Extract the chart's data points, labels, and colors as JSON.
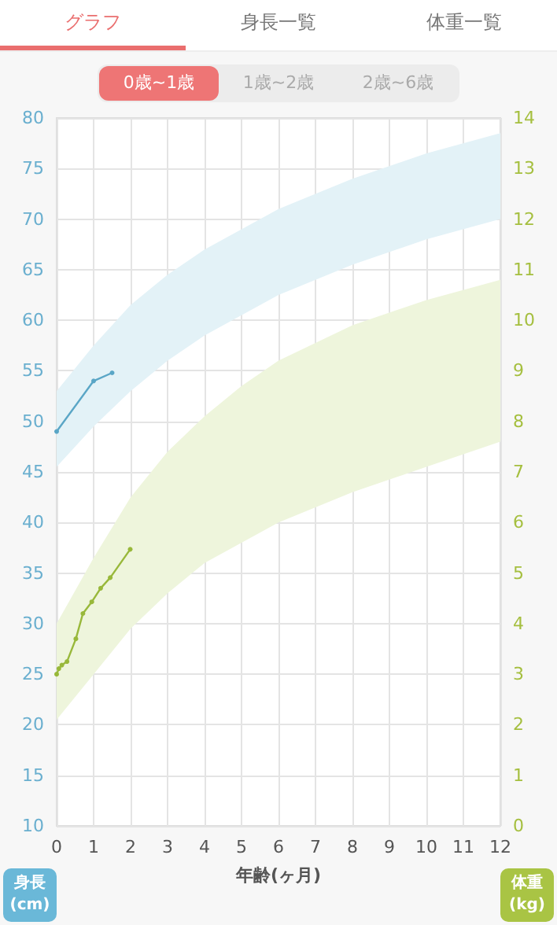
{
  "chart_data": {
    "type": "line",
    "annotations": [
      "グラフ",
      "身長一覧",
      "体重一覧",
      "0歳~1歳",
      "1歳~2歳",
      "2歳~6歳"
    ],
    "xlabel": "年齢(ヶ月)",
    "ylabel": "身長\n(cm)",
    "y2label": "体重\n(kg)",
    "xlim": [
      0,
      12
    ],
    "xticks": [
      0,
      1,
      2,
      3,
      4,
      5,
      6,
      7,
      8,
      9,
      10,
      11,
      12
    ],
    "ylim": [
      10,
      80
    ],
    "yticks": [
      10,
      15,
      20,
      25,
      30,
      35,
      40,
      45,
      50,
      55,
      60,
      65,
      70,
      75,
      80
    ],
    "y2lim": [
      0,
      14
    ],
    "y2ticks": [
      0,
      1,
      2,
      3,
      4,
      5,
      6,
      7,
      8,
      9,
      10,
      11,
      12,
      13,
      14
    ],
    "grid": true,
    "marker": "circle",
    "line_style": "solid",
    "series": [
      {
        "type": "area",
        "color": "#e3f2f7",
        "x": [
          0,
          1,
          2,
          3,
          4,
          5,
          6,
          8,
          10,
          12
        ],
        "values": [
          null,
          null,
          null,
          null,
          null,
          null,
          null,
          null,
          null,
          null
        ],
        "lower": [
          45.5,
          49.5,
          53,
          56,
          58.5,
          60.5,
          62.5,
          65.5,
          68,
          70
        ],
        "upper": [
          53,
          57.5,
          61.5,
          64.5,
          67,
          69,
          71,
          74,
          76.5,
          78.5
        ]
      },
      {
        "type": "area",
        "axis": "y2",
        "color": "#eef5dc",
        "x": [
          0,
          1,
          2,
          3,
          4,
          5,
          6,
          8,
          10,
          12
        ],
        "values": [
          null,
          null,
          null,
          null,
          null,
          null,
          null,
          null,
          null,
          null
        ],
        "lower": [
          2.1,
          3,
          3.9,
          4.6,
          5.2,
          5.6,
          6,
          6.6,
          7.1,
          7.6
        ],
        "upper": [
          4,
          5.3,
          6.5,
          7.4,
          8.1,
          8.7,
          9.2,
          9.9,
          10.4,
          10.8
        ]
      },
      {
        "color": "#5aa6c6",
        "x": [
          0,
          1,
          1.5
        ],
        "values": [
          49,
          54,
          54.8
        ]
      },
      {
        "axis": "y2",
        "color": "#98b83a",
        "x": [
          0,
          0.06,
          0.14,
          0.28,
          0.52,
          0.71,
          0.95,
          1.19,
          1.45,
          1.99
        ],
        "values": [
          3,
          3.11,
          3.18,
          3.25,
          3.7,
          4.2,
          4.43,
          4.7,
          4.91,
          5.47
        ]
      }
    ]
  }
}
